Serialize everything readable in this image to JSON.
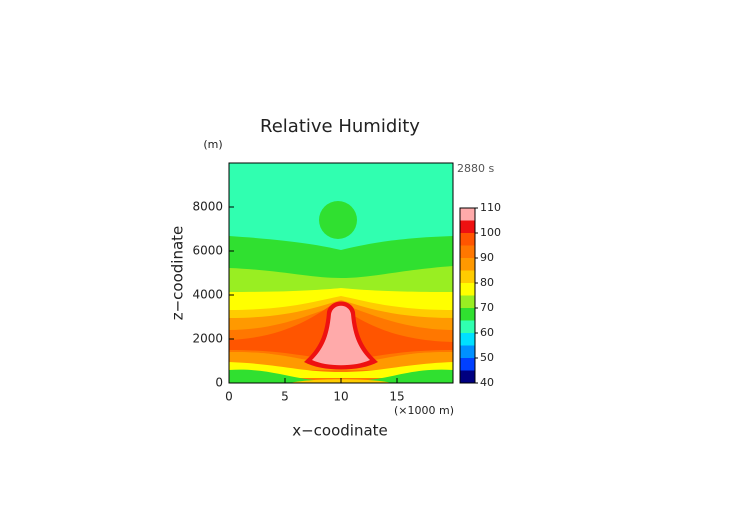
{
  "chart_data": {
    "type": "contour",
    "title": "Relative Humidity",
    "time_label": "2880 s",
    "x_label": "x−coodinate",
    "x_unit": "(×1000 m)",
    "y_label": "z−coodinate",
    "y_unit": "(m)",
    "xlim": [
      0,
      20
    ],
    "xticks": [
      0,
      5,
      10,
      15
    ],
    "ylim": [
      0,
      10000
    ],
    "yticks": [
      0,
      2000,
      4000,
      6000,
      8000
    ],
    "levels": [
      40,
      45,
      50,
      55,
      60,
      65,
      70,
      75,
      80,
      85,
      90,
      95,
      100,
      105,
      110
    ],
    "colors": [
      "#000080",
      "#0040ff",
      "#0090ff",
      "#00e0ff",
      "#30ffb0",
      "#30e030",
      "#99ee22",
      "#ffff00",
      "#ffcc00",
      "#ff9900",
      "#ff7700",
      "#ff5500",
      "#ee1111",
      "#ffaaaa"
    ],
    "colorbar_ticks": [
      40,
      50,
      60,
      70,
      80,
      90,
      100,
      110
    ]
  }
}
